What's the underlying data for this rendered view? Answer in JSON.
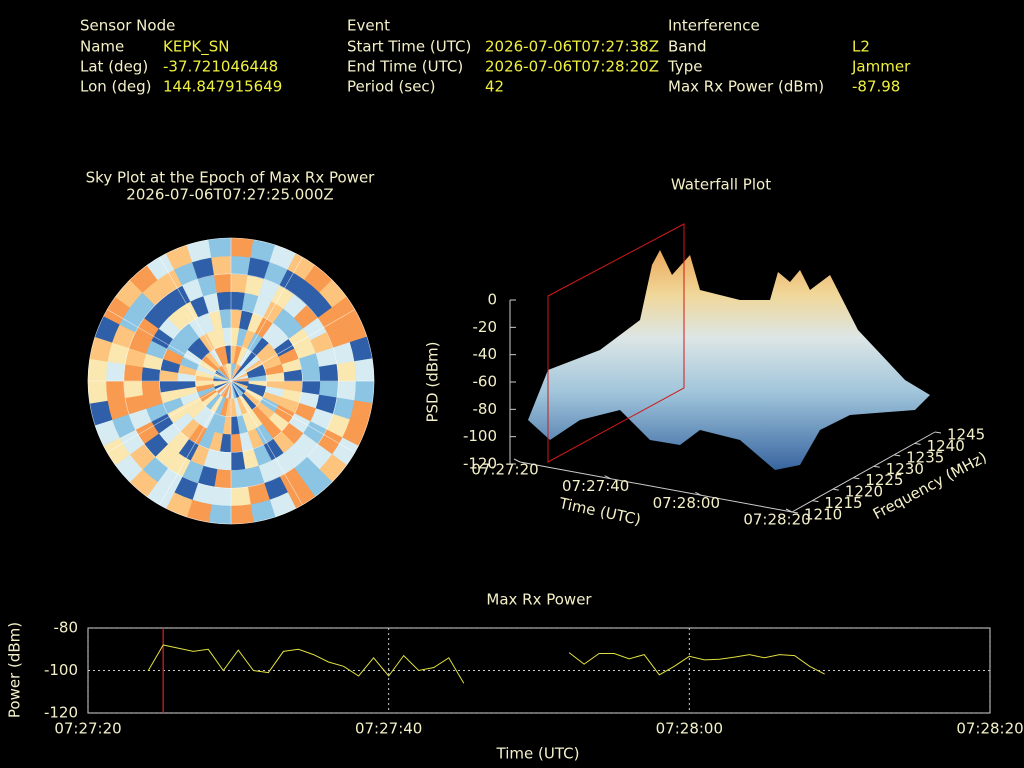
{
  "info": {
    "sensor": {
      "heading": "Sensor Node",
      "rows": [
        [
          "Name",
          "KEPK_SN"
        ],
        [
          "Lat (deg)",
          "-37.721046448"
        ],
        [
          "Lon (deg)",
          "144.847915649"
        ]
      ]
    },
    "event": {
      "heading": "Event",
      "rows": [
        [
          "Start Time (UTC)",
          "2026-07-06T07:27:38Z"
        ],
        [
          "End Time (UTC)",
          "2026-07-06T07:28:20Z"
        ],
        [
          "Period (sec)",
          "42"
        ]
      ]
    },
    "interference": {
      "heading": "Interference",
      "rows": [
        [
          "Band",
          "L2"
        ],
        [
          "Type",
          "Jammer"
        ],
        [
          "Max Rx Power (dBm)",
          "-87.98"
        ]
      ]
    }
  },
  "chart_data": [
    {
      "type": "polar-heatmap",
      "title": "Sky Plot at the Epoch of Max Rx Power",
      "subtitle": "2026-07-06T07:27:25.000Z"
    },
    {
      "type": "surface",
      "title": "Waterfall Plot",
      "zlabel": "PSD (dBm)",
      "xlabel": "Time (UTC)",
      "ylabel": "Frequency (MHz)",
      "zlim": [
        -120,
        0
      ],
      "zticks": [
        0,
        -20,
        -40,
        -60,
        -80,
        -100,
        -120
      ],
      "xlim": [
        "07:27:20",
        "07:28:20"
      ],
      "xticks": [
        "07:27:20",
        "07:27:40",
        "07:28:00",
        "07:28:20"
      ],
      "ylim": [
        1210,
        1245
      ],
      "yticks": [
        1210,
        1215,
        1220,
        1225,
        1230,
        1235,
        1240,
        1245
      ]
    },
    {
      "type": "line",
      "title": "Max Rx Power",
      "xlabel": "Time (UTC)",
      "ylabel": "Power (dBm)",
      "xlim": [
        "07:27:20",
        "07:28:20"
      ],
      "xticks": [
        "07:27:20",
        "07:27:40",
        "07:28:00",
        "07:28:20"
      ],
      "ylim": [
        -120,
        -80
      ],
      "yticks": [
        -80,
        -100,
        -120
      ],
      "grid": true,
      "color": "#e0e040",
      "marker_x": "07:27:25",
      "marker_color": "#e02020",
      "x": [
        "07:27:24",
        "07:27:25",
        "07:27:27",
        "07:27:28",
        "07:27:29",
        "07:27:30",
        "07:27:31",
        "07:27:32",
        "07:27:33",
        "07:27:34",
        "07:27:35",
        "07:27:36",
        "07:27:37",
        "07:27:38",
        "07:27:39",
        "07:27:40",
        "07:27:41",
        "07:27:42",
        "07:27:43",
        "07:27:44",
        "07:27:45",
        "07:27:48",
        "07:27:52",
        "07:27:53",
        "07:27:54",
        "07:27:55",
        "07:27:56",
        "07:27:57",
        "07:27:58",
        "07:27:59",
        "07:28:00",
        "07:28:01",
        "07:28:02",
        "07:28:03",
        "07:28:04",
        "07:28:05",
        "07:28:06",
        "07:28:07",
        "07:28:08",
        "07:28:09"
      ],
      "values": [
        -100.2,
        -88,
        -91,
        -90,
        -100,
        -90.4,
        -100,
        -101,
        -91,
        -90,
        -92.5,
        -96,
        -98,
        -102.6,
        -94,
        -102.6,
        -93,
        -100,
        -98.6,
        -94,
        -106,
        null,
        -91.6,
        -97,
        -92,
        -92,
        -94.5,
        -92.5,
        -102,
        -98,
        -93.3,
        -95,
        -94.7,
        -93.7,
        -92.5,
        -94,
        -92.5,
        -93,
        -98,
        -101.7
      ]
    }
  ]
}
